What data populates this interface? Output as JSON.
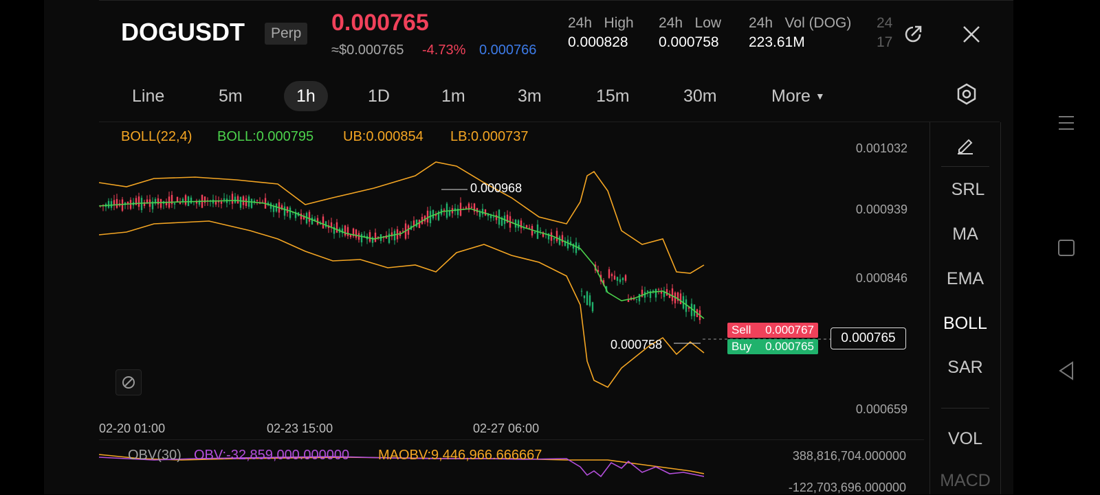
{
  "header": {
    "symbol": "DOGUSDT",
    "contract_type": "Perp",
    "last_price": "0.000765",
    "usd_price": "≈$0.000765",
    "change_pct": "-4.73%",
    "mark_price": "0.000766",
    "stats": [
      {
        "label": "24h   High",
        "value": "0.000828"
      },
      {
        "label": "24h   Low",
        "value": "0.000758"
      },
      {
        "label": "24h   Vol (DOG)",
        "value": "223.61M"
      }
    ],
    "clipped_stat": {
      "label": "24",
      "value": "17"
    },
    "icons": {
      "share": "share-icon",
      "close": "close-icon"
    }
  },
  "timeframes": {
    "items": [
      "Line",
      "5m",
      "1h",
      "1D",
      "1m",
      "3m",
      "15m",
      "30m",
      "More"
    ],
    "active": "1h",
    "settings_icon": "hexagon-settings-icon"
  },
  "indicator": {
    "name": "BOLL(22,4)",
    "boll": "BOLL:0.000795",
    "ub": "UB:0.000854",
    "lb": "LB:0.000737"
  },
  "price_axis": [
    "0.001032",
    "0.000939",
    "0.000846",
    "0.000659"
  ],
  "time_axis": [
    "02-20 01:00",
    "02-23 15:00",
    "02-27 06:00"
  ],
  "annotations": {
    "high_marker": "0.000968",
    "low_marker": "0.000758",
    "current_price": "0.000765"
  },
  "order_book": {
    "sell_label": "Sell",
    "sell_price": "0.000767",
    "buy_label": "Buy",
    "buy_price": "0.000765"
  },
  "indicator_menu": {
    "items": [
      "SRL",
      "MA",
      "EMA",
      "BOLL",
      "SAR",
      "VOL",
      "MACD"
    ],
    "active": "BOLL",
    "draw_icon": "pencil-icon"
  },
  "obv": {
    "name": "OBV(30)",
    "value": "OBV:-32,859,000.000000",
    "maobv": "MAOBV:9,446,966.666667",
    "scale_top": "388,816,704.000000",
    "scale_bottom": "-122,703,696.000000"
  },
  "colors": {
    "up": "#20b26c",
    "down": "#f0415a",
    "boll_mid": "#4cd34c",
    "boll_band": "#f5a623",
    "obv": "#b44fdc",
    "maobv": "#f5a623",
    "accent_blue": "#3d7be8"
  },
  "android_nav": {
    "menu": "menu-icon",
    "home": "square-icon",
    "back": "back-triangle-icon"
  }
}
